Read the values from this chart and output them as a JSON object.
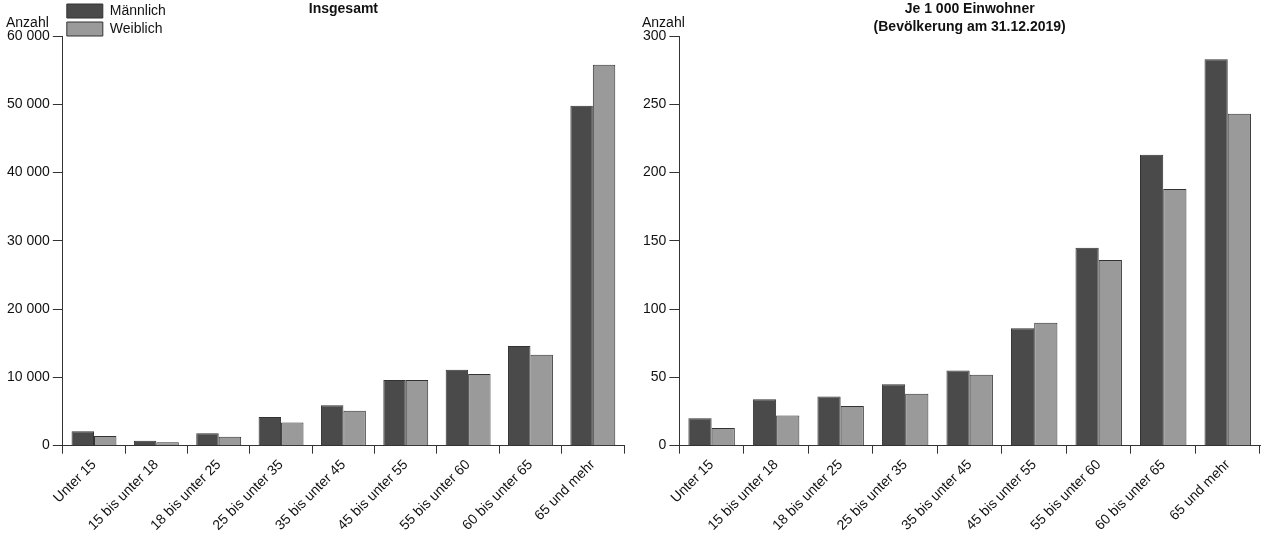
{
  "chart_data": [
    {
      "type": "bar",
      "title": "Insgesamt",
      "ylabel": "Anzahl",
      "categories": [
        "Unter 15",
        "15 bis unter 18",
        "18 bis unter 25",
        "25 bis unter 35",
        "35 bis unter 45",
        "45 bis unter 55",
        "55 bis unter 60",
        "60 bis unter 65",
        "65 und mehr"
      ],
      "series": [
        {
          "name": "Männlich",
          "color": "#4a4a4a",
          "values": [
            2100,
            700,
            1800,
            4200,
            5900,
            9600,
            11100,
            14600,
            49800
          ]
        },
        {
          "name": "Weiblich",
          "color": "#9a9a9a",
          "values": [
            1400,
            500,
            1300,
            3400,
            5100,
            9600,
            10500,
            13300,
            55800
          ]
        }
      ],
      "ylim": [
        0,
        60000
      ],
      "yticks": [
        {
          "value": 0,
          "label": "0"
        },
        {
          "value": 10000,
          "label": "10 000"
        },
        {
          "value": 20000,
          "label": "20 000"
        },
        {
          "value": 30000,
          "label": "30 000"
        },
        {
          "value": 40000,
          "label": "40 000"
        },
        {
          "value": 50000,
          "label": "50 000"
        },
        {
          "value": 60000,
          "label": "60 000"
        }
      ],
      "grid": false,
      "legend": "top left"
    },
    {
      "type": "bar",
      "title": "Je 1 000 Einwohner",
      "subtitle": "(Bevölkerung am 31.12.2019)",
      "ylabel": "Anzahl",
      "categories": [
        "Unter 15",
        "15 bis unter 18",
        "18 bis unter 25",
        "25 bis unter 35",
        "35 bis unter 45",
        "45 bis unter 55",
        "55 bis unter 60",
        "60 bis unter 65",
        "65 und mehr"
      ],
      "series": [
        {
          "color": "#4a4a4a",
          "values": [
            20,
            34,
            36,
            45,
            55,
            86,
            145,
            213,
            283
          ]
        },
        {
          "color": "#9a9a9a",
          "values": [
            13,
            22,
            29,
            38,
            52,
            90,
            136,
            188,
            243
          ]
        }
      ],
      "ylim": [
        0,
        300
      ],
      "yticks": [
        0,
        50,
        100,
        150,
        200,
        250,
        300
      ],
      "grid": false,
      "legend": false
    }
  ]
}
